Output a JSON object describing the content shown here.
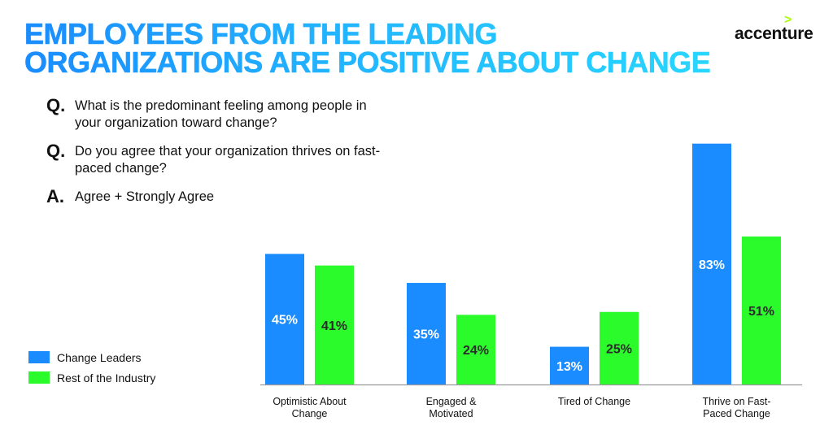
{
  "header": {
    "title_lines": [
      "EMPLOYEES FROM THE LEADING",
      "ORGANIZATIONS ARE POSITIVE ABOUT CHANGE"
    ],
    "logo": {
      "text": "accenture",
      "mark": ">"
    }
  },
  "questions": [
    {
      "mark": "Q.",
      "text": "What is the predominant feeling among people in your organization toward change?"
    },
    {
      "mark": "Q.",
      "text": "Do you agree that your organization thrives on fast-paced change?"
    },
    {
      "mark": "A.",
      "text": "Agree + Strongly Agree"
    }
  ],
  "colors": {
    "change_leaders": "#1a8cff",
    "rest_of_industry": "#2bfa2b",
    "title_start": "#1a8cff",
    "title_end": "#28d6ff",
    "logo_mark": "#a5ff00"
  },
  "chart_data": {
    "type": "bar",
    "title": "Employees from the leading organizations are positive about change",
    "categories": [
      [
        "Optimistic About",
        "Change"
      ],
      [
        "Engaged &",
        "Motivated"
      ],
      [
        "Tired of Change"
      ],
      [
        "Thrive on Fast-",
        "Paced Change"
      ]
    ],
    "series": [
      {
        "name": "Change Leaders",
        "color": "#1a8cff",
        "label_color": "#ffffff",
        "values": [
          45,
          35,
          13,
          83
        ],
        "labels": [
          "45%",
          "35%",
          "13%",
          "83%"
        ]
      },
      {
        "name": "Rest of the Industry",
        "color": "#2bfa2b",
        "label_color": "#2b2b2b",
        "values": [
          41,
          24,
          25,
          51
        ],
        "labels": [
          "41%",
          "24%",
          "25%",
          "51%"
        ]
      }
    ],
    "xlabel": "",
    "ylabel": "",
    "ylim": [
      0,
      100
    ],
    "grid": false,
    "legend": "left"
  }
}
